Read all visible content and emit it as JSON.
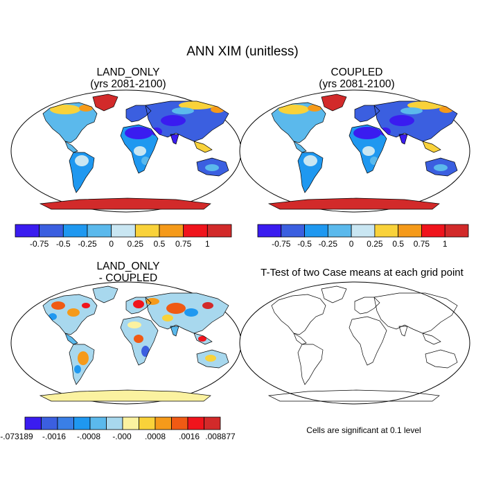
{
  "main_title": "ANN XIM (unitless)",
  "chart_data": [
    {
      "type": "heatmap",
      "panel": "top-left",
      "title_line1": "LAND_ONLY",
      "title_line2": "(yrs 2081-2100)",
      "projection": "Robinson world map",
      "colorbar": {
        "tick_labels": [
          "-0.75",
          "-0.5",
          "-0.25",
          "0",
          "0.25",
          "0.5",
          "0.75",
          "1"
        ],
        "bounds": [
          -0.75,
          -0.5,
          -0.25,
          0,
          0.25,
          0.5,
          0.75,
          1
        ],
        "colors": [
          "#3a1cf0",
          "#3b5fe0",
          "#1f98f0",
          "#5bb9ec",
          "#c9e6f2",
          "#f9d23a",
          "#f59a1a",
          "#f0141c",
          "#d22a2a"
        ]
      }
    },
    {
      "type": "heatmap",
      "panel": "top-right",
      "title_line1": "COUPLED",
      "title_line2": "(yrs 2081-2100)",
      "projection": "Robinson world map",
      "colorbar": {
        "tick_labels": [
          "-0.75",
          "-0.5",
          "-0.25",
          "0",
          "0.25",
          "0.5",
          "0.75",
          "1"
        ],
        "bounds": [
          -0.75,
          -0.5,
          -0.25,
          0,
          0.25,
          0.5,
          0.75,
          1
        ],
        "colors": [
          "#3a1cf0",
          "#3b5fe0",
          "#1f98f0",
          "#5bb9ec",
          "#c9e6f2",
          "#f9d23a",
          "#f59a1a",
          "#f0141c",
          "#d22a2a"
        ]
      }
    },
    {
      "type": "heatmap",
      "panel": "bottom-left",
      "title_line1": "LAND_ONLY",
      "title_line2": "- COUPLED",
      "projection": "Robinson world map",
      "colorbar": {
        "tick_labels": [
          "-.073189",
          "-.0016",
          "-.0008",
          "-.000",
          ".0008",
          ".0016",
          ".008877"
        ],
        "colors": [
          "#3a1cf0",
          "#3b5fe0",
          "#3a7fe6",
          "#1f98f0",
          "#5bb9ec",
          "#a8d8ee",
          "#fbf2a0",
          "#f9d23a",
          "#f59a1a",
          "#f05a14",
          "#f0141c",
          "#d22a2a"
        ]
      }
    },
    {
      "type": "heatmap",
      "panel": "bottom-right",
      "title_line1": "T-Test of two Case means at each grid point",
      "note": "Cells are significant at 0.1 level",
      "projection": "Robinson world map (coastlines only)"
    }
  ]
}
